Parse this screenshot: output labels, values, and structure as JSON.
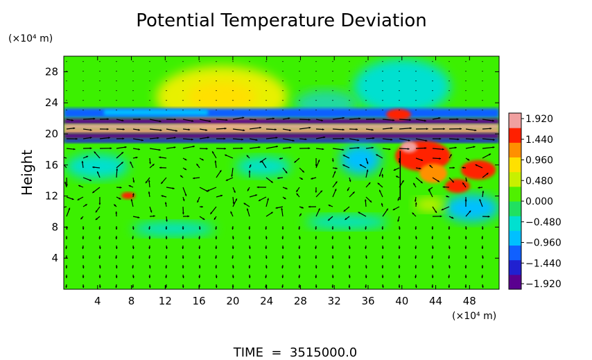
{
  "chart_data": {
    "type": "heatmap",
    "title": "Potential Temperature Deviation",
    "ylabel": "Height",
    "x_unit": "(×10⁴ m)",
    "y_unit": "(×10⁴ m)",
    "xlim": [
      0,
      51.5
    ],
    "ylim": [
      0,
      30
    ],
    "x_ticks": [
      4,
      8,
      12,
      16,
      20,
      24,
      28,
      32,
      36,
      40,
      44,
      48
    ],
    "y_ticks": [
      4,
      8,
      12,
      16,
      20,
      24,
      28
    ],
    "colorbar": {
      "min": -1.92,
      "max": 1.92,
      "ticks": [
        "1.920",
        "1.440",
        "0.960",
        "0.480",
        "0.000",
        "−0.480",
        "−0.960",
        "−1.440",
        "−1.920"
      ],
      "colors": [
        "#5a008f",
        "#2020d0",
        "#1060ff",
        "#00c0ff",
        "#00e0d0",
        "#20e060",
        "#50f000",
        "#c8f000",
        "#ffe000",
        "#ff9000",
        "#ff2000",
        "#f0a0a0"
      ]
    },
    "overlay": "velocity vectors",
    "grid": false,
    "legend": "right colorbar"
  },
  "footer": {
    "time_label": "TIME  =  3515000.0"
  },
  "colors": {
    "background_field": "#3cf000",
    "arrow": "#000000"
  }
}
